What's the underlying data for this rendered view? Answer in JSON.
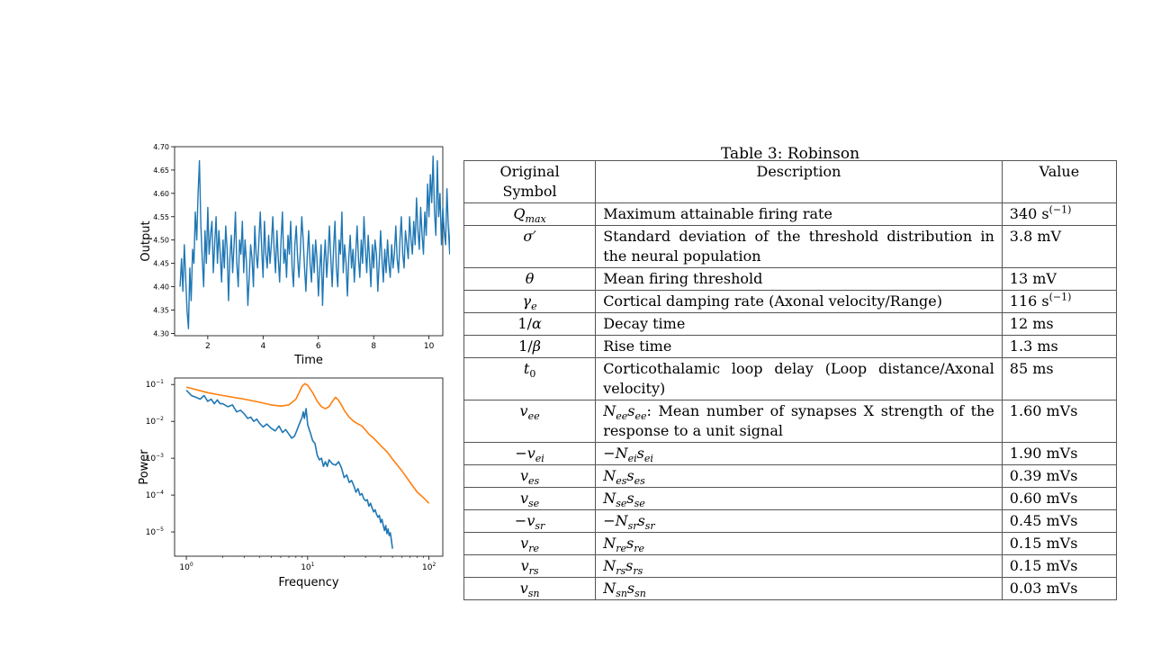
{
  "chart_data": [
    {
      "type": "line",
      "title": "",
      "xlabel": "Time",
      "ylabel": "Output",
      "xlim": [
        0.8,
        10.5
      ],
      "ylim": [
        4.295,
        4.7
      ],
      "x_ticks": [
        2,
        4,
        6,
        8,
        10
      ],
      "y_ticks": [
        4.3,
        4.35,
        4.4,
        4.45,
        4.5,
        4.55,
        4.6,
        4.65,
        4.7
      ],
      "y_tick_labels": [
        "4.30",
        "4.35",
        "4.40",
        "4.45",
        "4.50",
        "4.55",
        "4.60",
        "4.65",
        "4.70"
      ],
      "color": "#1f77b4",
      "series": [
        {
          "x_start": 1.0,
          "x_step": 0.05,
          "values": [
            4.4,
            4.46,
            4.39,
            4.49,
            4.42,
            4.35,
            4.31,
            4.44,
            4.37,
            4.48,
            4.45,
            4.56,
            4.5,
            4.6,
            4.67,
            4.53,
            4.46,
            4.4,
            4.52,
            4.45,
            4.57,
            4.47,
            4.51,
            4.54,
            4.43,
            4.49,
            4.55,
            4.45,
            4.52,
            4.47,
            4.41,
            4.5,
            4.44,
            4.53,
            4.48,
            4.37,
            4.46,
            4.51,
            4.43,
            4.49,
            4.56,
            4.45,
            4.4,
            4.5,
            4.47,
            4.54,
            4.43,
            4.5,
            4.45,
            4.36,
            4.42,
            4.49,
            4.46,
            4.4,
            4.53,
            4.47,
            4.44,
            4.5,
            4.56,
            4.48,
            4.42,
            4.54,
            4.47,
            4.44,
            4.51,
            4.45,
            4.49,
            4.55,
            4.48,
            4.43,
            4.52,
            4.46,
            4.41,
            4.5,
            4.56,
            4.45,
            4.48,
            4.42,
            4.51,
            4.47,
            4.54,
            4.44,
            4.4,
            4.49,
            4.53,
            4.46,
            4.42,
            4.48,
            4.55,
            4.5,
            4.44,
            4.39,
            4.47,
            4.52,
            4.45,
            4.41,
            4.49,
            4.43,
            4.5,
            4.46,
            4.38,
            4.44,
            4.49,
            4.36,
            4.45,
            4.5,
            4.42,
            4.47,
            4.53,
            4.46,
            4.4,
            4.48,
            4.54,
            4.44,
            4.4,
            4.5,
            4.47,
            4.56,
            4.43,
            4.49,
            4.45,
            4.38,
            4.46,
            4.51,
            4.44,
            4.48,
            4.41,
            4.47,
            4.53,
            4.46,
            4.42,
            4.5,
            4.45,
            4.55,
            4.48,
            4.43,
            4.51,
            4.46,
            4.4,
            4.49,
            4.44,
            4.5,
            4.47,
            4.39,
            4.45,
            4.52,
            4.46,
            4.41,
            4.48,
            4.43,
            4.5,
            4.45,
            4.42,
            4.49,
            4.44,
            4.47,
            4.53,
            4.46,
            4.43,
            4.5,
            4.55,
            4.47,
            4.44,
            4.52,
            4.49,
            4.46,
            4.55,
            4.5,
            4.47,
            4.54,
            4.49,
            4.59,
            4.52,
            4.48,
            4.57,
            4.51,
            4.47,
            4.56,
            4.51,
            4.62,
            4.55,
            4.64,
            4.58,
            4.68,
            4.56,
            4.51,
            4.67,
            4.55,
            4.6,
            4.49,
            4.57,
            4.52,
            4.49,
            4.61,
            4.53,
            4.47,
            4.58,
            4.51,
            4.48,
            4.55,
            4.6,
            4.52,
            4.63,
            4.56,
            4.5,
            4.65,
            4.57,
            4.63,
            4.58
          ],
          "color": "#1f77b4"
        }
      ]
    },
    {
      "type": "line",
      "title": "",
      "xlabel": "Frequency",
      "ylabel": "Power",
      "x_scale": "log",
      "y_scale": "log",
      "xlim": [
        0.8,
        130
      ],
      "ylim": [
        2.2e-06,
        0.15
      ],
      "x_ticks": [
        1,
        10,
        100
      ],
      "y_ticks": [
        1e-05,
        0.0001,
        0.001,
        0.01,
        0.1
      ],
      "series": [
        {
          "color": "#1f77b4",
          "x": [
            1.0,
            1.1,
            1.2,
            1.3,
            1.4,
            1.5,
            1.6,
            1.7,
            1.8,
            1.9,
            2.0,
            2.2,
            2.4,
            2.6,
            2.8,
            3.0,
            3.2,
            3.4,
            3.6,
            3.8,
            4.0,
            4.3,
            4.6,
            5.0,
            5.4,
            5.8,
            6.2,
            6.6,
            7.0,
            7.4,
            7.8,
            8.2,
            8.6,
            9.0,
            9.2,
            9.4,
            9.7,
            10.0,
            10.5,
            11.0,
            11.5,
            12.0,
            12.5,
            13.0,
            13.5,
            14.0,
            14.5,
            15.0,
            16.0,
            17.0,
            18.0,
            19.0,
            20.0,
            21.0,
            22.0,
            23.0,
            24.0,
            25.0,
            26.0,
            27.0,
            28.0,
            29.0,
            30.0,
            31.0,
            32.0,
            33.0,
            34.0,
            35.0,
            36.0,
            37.0,
            38.0,
            39.0,
            40.0,
            41.0,
            42.0,
            43.0,
            44.0,
            45.0,
            46.0,
            47.0,
            48.0,
            49.0,
            50.0
          ],
          "values": [
            0.07,
            0.05,
            0.045,
            0.04,
            0.05,
            0.035,
            0.04,
            0.03,
            0.038,
            0.03,
            0.03,
            0.025,
            0.028,
            0.018,
            0.02,
            0.016,
            0.012,
            0.013,
            0.01,
            0.0115,
            0.009,
            0.007,
            0.0085,
            0.0065,
            0.0055,
            0.0075,
            0.005,
            0.006,
            0.0045,
            0.0035,
            0.004,
            0.006,
            0.009,
            0.013,
            0.018,
            0.012,
            0.022,
            0.008,
            0.005,
            0.003,
            0.0025,
            0.0012,
            0.0009,
            0.001,
            0.0006,
            0.0008,
            0.0006,
            0.0009,
            0.0007,
            0.00065,
            0.0008,
            0.00055,
            0.0003,
            0.00035,
            0.00022,
            0.00025,
            0.00018,
            0.00012,
            0.00015,
            0.0001,
            0.00011,
            8e-05,
            7e-05,
            7.5e-05,
            5e-05,
            6e-05,
            4.5e-05,
            3.5e-05,
            4e-05,
            3e-05,
            2.5e-05,
            2.8e-05,
            1.8e-05,
            2.2e-05,
            1.5e-05,
            1.1e-05,
            1.5e-05,
            9e-06,
            1.2e-05,
            8e-06,
            9.5e-06,
            6e-06,
            3.5e-06
          ]
        },
        {
          "color": "#ff7f0e",
          "x": [
            1.0,
            1.5,
            2.0,
            3.0,
            4.0,
            5.0,
            6.0,
            7.0,
            8.0,
            8.5,
            9.0,
            9.5,
            10.0,
            11.0,
            12.0,
            13.0,
            14.0,
            15.0,
            16.0,
            17.0,
            18.0,
            19.0,
            20.0,
            22.0,
            24.0,
            26.0,
            28.0,
            30.0,
            32.0,
            35.0,
            40.0,
            45.0,
            50.0,
            60.0,
            70.0,
            80.0,
            90.0,
            100.0
          ],
          "values": [
            0.085,
            0.06,
            0.05,
            0.04,
            0.033,
            0.028,
            0.026,
            0.028,
            0.04,
            0.06,
            0.09,
            0.105,
            0.095,
            0.06,
            0.035,
            0.025,
            0.022,
            0.025,
            0.035,
            0.045,
            0.037,
            0.028,
            0.02,
            0.013,
            0.01,
            0.0085,
            0.0075,
            0.0058,
            0.0045,
            0.0035,
            0.0022,
            0.0015,
            0.00095,
            0.00045,
            0.00022,
            0.00012,
            8.5e-05,
            6e-05
          ]
        }
      ]
    }
  ],
  "table": {
    "caption": "Table 3: Robinson",
    "headers": [
      "Original Symbol",
      "Description",
      "Value"
    ]
  }
}
